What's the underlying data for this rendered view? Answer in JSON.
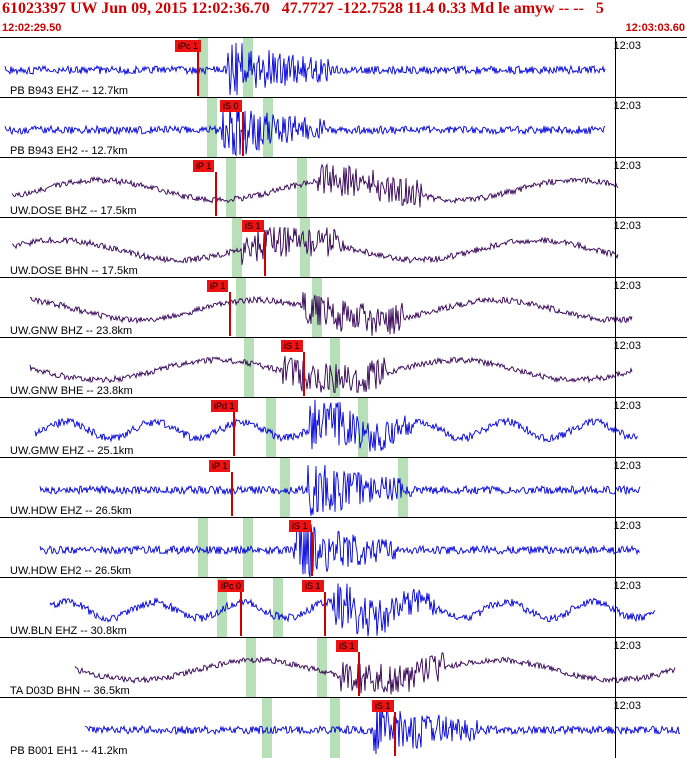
{
  "header": {
    "title": "61023397 UW Jun 09, 2015 12:02:36.70   47.7727 -122.7528 11.4 0.33 Md le amyw -- --   5",
    "start_time": "12:02:29.50",
    "end_time": "12:03:03.60"
  },
  "colors": {
    "header_red": "#cc0000",
    "trace_blue": "#0000dd",
    "trace_dark": "#330055",
    "pick_red": "#ee1111",
    "pick_band": "#b8e0b8"
  },
  "panels": [
    {
      "label": "PB B943 EHZ -- 12.7km",
      "time": "12:03",
      "pick": "iPc 1",
      "color": "#0000dd"
    },
    {
      "label": "PB B943 EH2 -- 12.7km",
      "time": "12:03",
      "pick": "iS 0",
      "color": "#0000dd"
    },
    {
      "label": "UW.DOSE BHZ -- 17.5km",
      "time": "12:03",
      "pick": "iP 1",
      "color": "#330055"
    },
    {
      "label": "UW.DOSE BHN -- 17.5km",
      "time": "12:03",
      "pick": "iS 1",
      "color": "#330055"
    },
    {
      "label": "UW.GNW BHZ -- 23.8km",
      "time": "12:03",
      "pick": "iP 1",
      "color": "#330055"
    },
    {
      "label": "UW.GNW BHE -- 23.8km",
      "time": "12:03",
      "pick": "iS 1",
      "color": "#330055"
    },
    {
      "label": "UW.GMW EHZ -- 25.1km",
      "time": "12:03",
      "pick": "iPd 1",
      "color": "#0000dd"
    },
    {
      "label": "UW.HDW EHZ -- 26.5km",
      "time": "12:03",
      "pick": "iP 1",
      "color": "#0000dd"
    },
    {
      "label": "UW.HDW EH2 -- 26.5km",
      "time": "12:03",
      "pick": "iS 1",
      "color": "#0000dd"
    },
    {
      "label": "UW.BLN EHZ -- 30.8km",
      "time": "12:03",
      "pick": "iPc 0",
      "pick2": "iS 1",
      "color": "#0000dd"
    },
    {
      "label": "TA D03D BHN -- 36.5km",
      "time": "12:03",
      "pick": "iS 1",
      "color": "#330055"
    },
    {
      "label": "PB B001 EH1 -- 41.2km",
      "time": "12:03",
      "pick": "iS 1",
      "color": "#0000dd"
    }
  ]
}
